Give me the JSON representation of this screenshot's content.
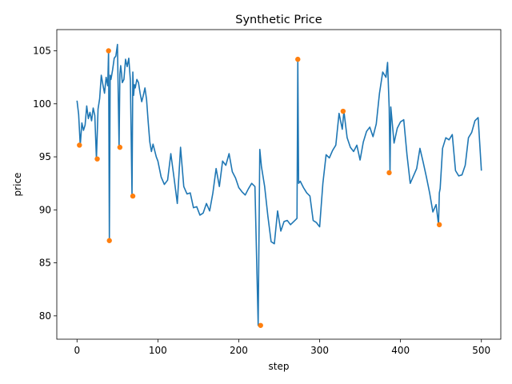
{
  "chart_data": {
    "type": "line",
    "title": "Synthetic Price",
    "xlabel": "step",
    "ylabel": "price",
    "xlim": [
      -25,
      524
    ],
    "ylim": [
      77.8,
      107.0
    ],
    "xticks": [
      0,
      100,
      200,
      300,
      400,
      500
    ],
    "yticks": [
      80,
      85,
      90,
      95,
      100,
      105
    ],
    "grid": false,
    "colors": {
      "line": "#1f77b4",
      "anomaly": "#ff7f0e"
    },
    "series": [
      {
        "role": "price",
        "x": [
          0,
          2,
          4,
          6,
          8,
          10,
          12,
          14,
          16,
          18,
          20,
          22,
          24,
          26,
          28,
          30,
          32,
          34,
          36,
          38,
          39,
          40,
          41,
          42,
          44,
          46,
          48,
          50,
          52,
          53,
          54,
          55,
          56,
          58,
          60,
          62,
          64,
          66,
          68,
          69,
          70,
          71,
          72,
          74,
          76,
          78,
          80,
          82,
          84,
          86,
          88,
          90,
          92,
          94,
          96,
          98,
          100,
          104,
          108,
          112,
          116,
          120,
          124,
          128,
          132,
          136,
          140,
          144,
          148,
          152,
          156,
          160,
          164,
          168,
          172,
          176,
          180,
          184,
          188,
          192,
          196,
          200,
          204,
          208,
          212,
          216,
          220,
          224,
          226,
          227,
          228,
          232,
          236,
          240,
          244,
          248,
          252,
          256,
          260,
          264,
          268,
          272,
          273,
          274,
          276,
          280,
          284,
          288,
          292,
          296,
          300,
          304,
          308,
          312,
          316,
          320,
          324,
          328,
          330,
          334,
          338,
          342,
          346,
          350,
          354,
          358,
          362,
          366,
          370,
          374,
          378,
          382,
          384,
          386,
          387,
          388,
          392,
          396,
          400,
          404,
          408,
          412,
          416,
          420,
          424,
          428,
          432,
          436,
          440,
          444,
          447,
          448,
          449,
          452,
          456,
          460,
          464,
          468,
          472,
          476,
          480,
          484,
          488,
          492,
          496,
          500
        ],
        "y": [
          100.3,
          99.0,
          96.1,
          98.2,
          97.5,
          98.0,
          99.8,
          98.6,
          99.2,
          98.4,
          99.6,
          98.9,
          94.8,
          99.5,
          100.5,
          102.7,
          101.8,
          101.0,
          102.5,
          101.7,
          105.0,
          87.1,
          102.7,
          102.3,
          103.2,
          104.3,
          104.5,
          105.6,
          95.9,
          102.8,
          103.6,
          102.9,
          102.0,
          102.3,
          104.2,
          103.5,
          104.3,
          102.2,
          91.3,
          103.0,
          100.8,
          101.8,
          101.5,
          102.3,
          102.0,
          101.0,
          100.2,
          100.8,
          101.5,
          100.4,
          98.3,
          96.4,
          95.5,
          96.2,
          95.6,
          95.0,
          94.6,
          93.1,
          92.4,
          92.8,
          95.3,
          93.0,
          90.6,
          95.9,
          92.2,
          91.5,
          91.6,
          90.2,
          90.3,
          89.5,
          89.7,
          90.6,
          89.9,
          91.6,
          93.9,
          92.2,
          94.6,
          94.2,
          95.3,
          93.6,
          93.0,
          92.1,
          91.7,
          91.4,
          92.0,
          92.5,
          92.2,
          79.1,
          95.7,
          94.9,
          94.1,
          92.2,
          89.4,
          87.0,
          86.8,
          89.9,
          88.0,
          88.9,
          89.0,
          88.6,
          88.9,
          89.2,
          104.2,
          92.5,
          92.7,
          92.1,
          91.6,
          91.3,
          89.0,
          88.8,
          88.4,
          92.5,
          95.2,
          94.9,
          95.6,
          96.1,
          99.1,
          97.6,
          99.3,
          96.8,
          95.9,
          95.5,
          96.1,
          94.7,
          96.4,
          97.4,
          97.8,
          96.9,
          98.1,
          101.0,
          103.0,
          102.5,
          103.9,
          99.6,
          93.5,
          99.7,
          96.3,
          97.7,
          98.3,
          98.5,
          95.2,
          92.5,
          93.2,
          93.9,
          95.8,
          94.5,
          93.1,
          91.6,
          89.8,
          90.5,
          88.6,
          91.6,
          92.0,
          95.8,
          96.8,
          96.6,
          97.1,
          93.7,
          93.2,
          93.3,
          94.2,
          96.8,
          97.3,
          98.4,
          98.7,
          93.7
        ]
      },
      {
        "role": "anomalies",
        "x": [
          3,
          25,
          39,
          40,
          53,
          69,
          227,
          273,
          329,
          386,
          448
        ],
        "y": [
          96.1,
          94.8,
          105.0,
          87.1,
          95.9,
          91.3,
          79.1,
          104.2,
          99.3,
          93.5,
          88.6
        ]
      }
    ]
  }
}
